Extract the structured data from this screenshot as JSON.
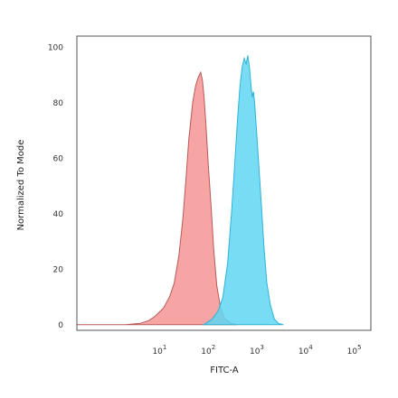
{
  "chart_data": {
    "type": "area",
    "xscale": "log",
    "xlabel": "FITC-A",
    "ylabel": "Normalized To Mode",
    "xlim": [
      0.2,
      220000
    ],
    "ylim": [
      -2,
      104
    ],
    "xticks": [
      {
        "value": 10,
        "base": "10",
        "exp": "1"
      },
      {
        "value": 100,
        "base": "10",
        "exp": "2"
      },
      {
        "value": 1000,
        "base": "10",
        "exp": "3"
      },
      {
        "value": 10000,
        "base": "10",
        "exp": "4"
      },
      {
        "value": 100000,
        "base": "10",
        "exp": "5"
      }
    ],
    "yticks": [
      "0",
      "20",
      "40",
      "60",
      "80",
      "100"
    ],
    "grid": false,
    "series": [
      {
        "fill": "#f59494",
        "stroke": "#b85a5a",
        "x": [
          0.2,
          2,
          4,
          6,
          8,
          12,
          16,
          20,
          25,
          30,
          35,
          40,
          48,
          55,
          62,
          70,
          76,
          82,
          90,
          100,
          115,
          130,
          150,
          180,
          220,
          300,
          400
        ],
        "y": [
          0,
          0,
          0.5,
          1.5,
          3,
          6,
          10,
          15,
          25,
          38,
          53,
          67,
          80,
          86,
          89,
          91,
          88,
          82,
          72,
          58,
          42,
          27,
          14,
          6,
          2,
          0.5,
          0
        ]
      },
      {
        "fill": "#5fd6f2",
        "stroke": "#2fb3d8",
        "x": [
          80,
          120,
          160,
          200,
          250,
          300,
          350,
          400,
          450,
          500,
          550,
          600,
          650,
          700,
          750,
          800,
          850,
          900,
          1000,
          1100,
          1250,
          1400,
          1600,
          1900,
          2300,
          2800,
          3500
        ],
        "y": [
          0,
          2,
          5,
          10,
          22,
          40,
          58,
          74,
          86,
          93,
          96,
          94,
          97,
          93,
          87,
          82,
          84,
          80,
          68,
          57,
          42,
          28,
          15,
          7,
          2,
          0.5,
          0
        ]
      }
    ]
  }
}
